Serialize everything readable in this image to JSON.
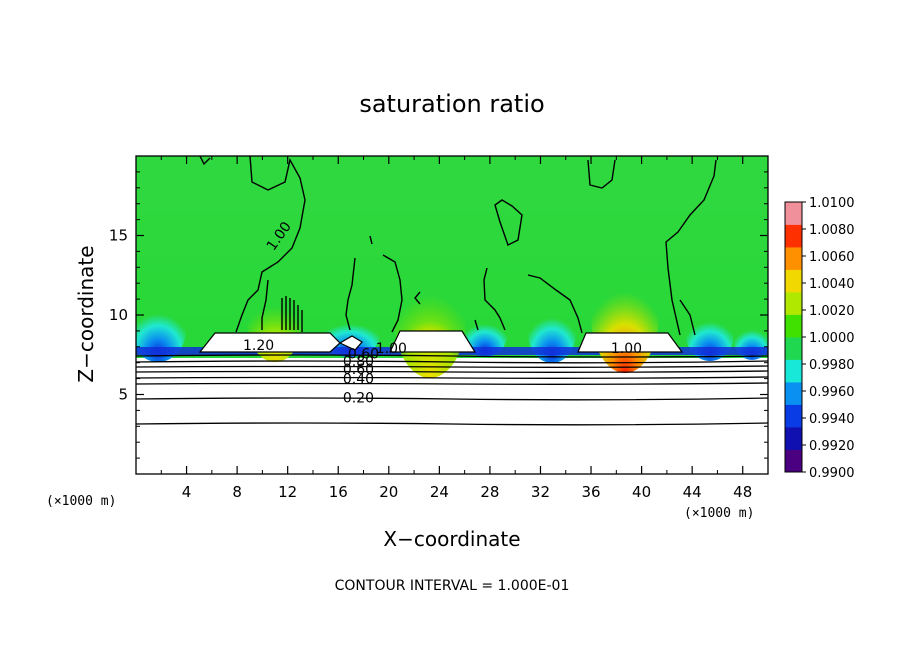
{
  "chart_data": {
    "type": "heatmap",
    "title": "saturation ratio",
    "xlabel": "X−coordinate",
    "ylabel": "Z−coordinate",
    "x_unit_left": "(×1000 m)",
    "x_unit_right": "(×1000 m)",
    "xlim": [
      0,
      50
    ],
    "ylim": [
      0,
      20
    ],
    "x_ticks": [
      4,
      8,
      12,
      16,
      20,
      24,
      28,
      32,
      36,
      40,
      44,
      48
    ],
    "y_ticks": [
      5,
      10,
      15
    ],
    "colorbar": {
      "min": 0.99,
      "max": 1.01,
      "tick_labels": [
        "1.0100",
        "1.0080",
        "1.0060",
        "1.0040",
        "1.0020",
        "1.0000",
        "0.9980",
        "0.9960",
        "0.9940",
        "0.9920",
        "0.9900"
      ],
      "colors": [
        "#4a0080",
        "#1010b0",
        "#0a3ce6",
        "#0a90f0",
        "#18e8d8",
        "#20d850",
        "#40e000",
        "#b0e800",
        "#f0d800",
        "#ff9000",
        "#ff3000",
        "#f0909a"
      ]
    },
    "contour_labels": [
      {
        "text": "1.00",
        "x": 11.6,
        "z": 14.8,
        "rotate": -55
      },
      {
        "text": "1.20",
        "x": 9.7,
        "z": 7.8,
        "rotate": 0
      },
      {
        "text": "0.60",
        "x": 18.0,
        "z": 7.25,
        "rotate": 0
      },
      {
        "text": "1.00",
        "x": 20.2,
        "z": 7.6,
        "rotate": 0
      },
      {
        "text": "0.80",
        "x": 17.6,
        "z": 6.8,
        "rotate": 0
      },
      {
        "text": "0.60",
        "x": 17.6,
        "z": 6.3,
        "rotate": 0
      },
      {
        "text": "0.40",
        "x": 17.6,
        "z": 5.7,
        "rotate": 0
      },
      {
        "text": "0.20",
        "x": 17.6,
        "z": 4.5,
        "rotate": 0
      },
      {
        "text": "1.00",
        "x": 38.8,
        "z": 7.6,
        "rotate": 0
      }
    ],
    "footer": "CONTOUR INTERVAL = 1.000E-01"
  }
}
